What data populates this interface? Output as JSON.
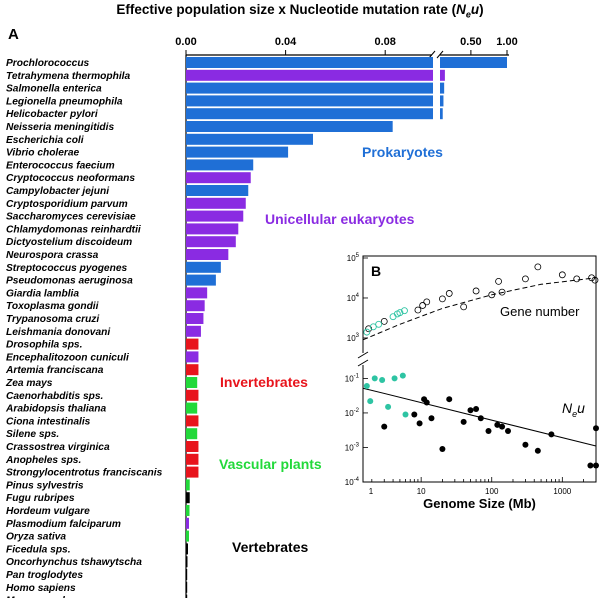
{
  "chart_data": [
    {
      "panel": "A",
      "type": "bar",
      "orientation": "horizontal",
      "title": "Effective population size x Nucleotide mutation rate (",
      "title_symbol": "N",
      "title_subscript": "e",
      "title_symbol2": "u",
      "title_close": ")",
      "x_ticks_left": [
        "0.00",
        "0.04",
        "0.08"
      ],
      "x_ticks_right": [
        "0.50",
        "1.00"
      ],
      "colors": {
        "Prokaryotes": "#1f6fd6",
        "Unicellular eukaryotes": "#8a2be2",
        "Invertebrates": "#e8141c",
        "Vascular plants": "#22d93a",
        "Vertebrates": "#000000"
      },
      "group_labels": [
        {
          "text": "Prokaryotes",
          "color": "#1f6fd6"
        },
        {
          "text": "Unicellular eukaryotes",
          "color": "#8a2be2"
        },
        {
          "text": "Invertebrates",
          "color": "#e8141c"
        },
        {
          "text": "Vascular plants",
          "color": "#22d93a"
        },
        {
          "text": "Vertebrates",
          "color": "#000000"
        }
      ],
      "categories": [
        "Prochlorococcus",
        "Tetrahymena thermophila",
        "Salmonella enterica",
        "Legionella pneumophila",
        "Helicobacter pylori",
        "Neisseria meningitidis",
        "Escherichia coli",
        "Vibrio cholerae",
        "Enterococcus faecium",
        "Cryptococcus neoformans",
        "Campylobacter jejuni",
        "Cryptosporidium parvum",
        "Saccharomyces cerevisiae",
        "Chlamydomonas reinhardtii",
        "Dictyostelium discoideum",
        "Neurospora crassa",
        "Streptococcus pyogenes",
        "Pseudomonas aeruginosa",
        "Giardia lamblia",
        "Toxoplasma gondii",
        "Trypanosoma cruzi",
        "Leishmania donovani",
        "Drosophila sps.",
        "Encephalitozoon cuniculi",
        "Artemia franciscana",
        "Zea mays",
        "Caenorhabditis sps.",
        "Arabidopsis thaliana",
        "Ciona intestinalis",
        "Silene sps.",
        "Crassostrea virginica",
        "Anopheles sps.",
        "Strongylocentrotus franciscanis",
        "Pinus sylvestris",
        "Fugu rubripes",
        "Hordeum vulgare",
        "Plasmodium falciparum",
        "Oryza sativa",
        "Ficedula sps.",
        "Oncorhynchus tshawytscha",
        "Pan troglodytes",
        "Homo sapiens",
        "Mus musculus"
      ],
      "groups": [
        "Prokaryotes",
        "Unicellular eukaryotes",
        "Prokaryotes",
        "Prokaryotes",
        "Prokaryotes",
        "Prokaryotes",
        "Prokaryotes",
        "Prokaryotes",
        "Prokaryotes",
        "Unicellular eukaryotes",
        "Prokaryotes",
        "Unicellular eukaryotes",
        "Unicellular eukaryotes",
        "Unicellular eukaryotes",
        "Unicellular eukaryotes",
        "Unicellular eukaryotes",
        "Prokaryotes",
        "Prokaryotes",
        "Unicellular eukaryotes",
        "Unicellular eukaryotes",
        "Unicellular eukaryotes",
        "Unicellular eukaryotes",
        "Invertebrates",
        "Unicellular eukaryotes",
        "Invertebrates",
        "Vascular plants",
        "Invertebrates",
        "Vascular plants",
        "Invertebrates",
        "Vascular plants",
        "Invertebrates",
        "Invertebrates",
        "Invertebrates",
        "Vascular plants",
        "Vertebrates",
        "Vascular plants",
        "Unicellular eukaryotes",
        "Vascular plants",
        "Vertebrates",
        "Vertebrates",
        "Vertebrates",
        "Vertebrates",
        "Vertebrates"
      ],
      "values": [
        1.0,
        0.14,
        0.13,
        0.12,
        0.11,
        0.083,
        0.051,
        0.041,
        0.027,
        0.026,
        0.025,
        0.024,
        0.023,
        0.021,
        0.02,
        0.017,
        0.014,
        0.012,
        0.0085,
        0.0075,
        0.007,
        0.006,
        0.005,
        0.005,
        0.005,
        0.0045,
        0.005,
        0.0045,
        0.005,
        0.0045,
        0.005,
        0.005,
        0.005,
        0.0015,
        0.0015,
        0.0014,
        0.0012,
        0.0012,
        0.0008,
        0.0006,
        0.0004,
        0.0003,
        0.0002
      ]
    },
    {
      "panel": "B",
      "type": "scatter",
      "xlabel": "Genome Size (Mb)",
      "xscale": "log",
      "xlim": [
        1.5,
        3000
      ],
      "x_ticks": [
        "1",
        "10",
        "100",
        "1000"
      ],
      "upper": {
        "label": "Gene number",
        "yscale": "log",
        "ylim": [
          500,
          100000
        ],
        "y_ticks": [
          "10",
          "10",
          "10"
        ],
        "y_tick_exponents": [
          "3",
          "4",
          "5"
        ],
        "fit_line": {
          "style": "dashed",
          "points": [
            [
              1.5,
              900
            ],
            [
              5,
              2200
            ],
            [
              20,
              5500
            ],
            [
              100,
              12000
            ],
            [
              500,
              22000
            ],
            [
              3000,
              32000
            ]
          ]
        },
        "points_unicellular": {
          "color": "#2ec4a3",
          "points": [
            [
              1.7,
              1400
            ],
            [
              2.1,
              1900
            ],
            [
              2.5,
              2200
            ],
            [
              4.0,
              3400
            ],
            [
              4.6,
              4000
            ],
            [
              5.0,
              4300
            ],
            [
              5.8,
              4800
            ]
          ]
        },
        "points_other": {
          "color": "#000000",
          "points": [
            [
              1.8,
              1700
            ],
            [
              3.0,
              2600
            ],
            [
              9,
              5000
            ],
            [
              10.5,
              6500
            ],
            [
              12,
              8000
            ],
            [
              20,
              9500
            ],
            [
              25,
              13000
            ],
            [
              40,
              6000
            ],
            [
              60,
              15000
            ],
            [
              100,
              12000
            ],
            [
              125,
              26000
            ],
            [
              140,
              14000
            ],
            [
              300,
              30000
            ],
            [
              450,
              60000
            ],
            [
              1000,
              38000
            ],
            [
              1600,
              30000
            ],
            [
              2600,
              32000
            ],
            [
              2900,
              28000
            ]
          ]
        }
      },
      "lower": {
        "label_symbol": "N",
        "label_subscript": "e",
        "label_symbol2": "u",
        "yscale": "log",
        "ylim": [
          0.0001,
          0.2
        ],
        "y_ticks": [
          "10",
          "10",
          "10",
          "10"
        ],
        "y_tick_exponents": [
          "-1",
          "-2",
          "-3",
          "-4"
        ],
        "fit_line": {
          "style": "solid",
          "points": [
            [
              1.5,
              0.052
            ],
            [
              3000,
              0.0011
            ]
          ]
        },
        "points_unicellular": {
          "color": "#2ec4a3",
          "points": [
            [
              1.7,
              0.06
            ],
            [
              1.9,
              0.022
            ],
            [
              2.2,
              0.1
            ],
            [
              2.8,
              0.09
            ],
            [
              3.4,
              0.015
            ],
            [
              4.2,
              0.1
            ],
            [
              5.5,
              0.12
            ],
            [
              6.0,
              0.009
            ]
          ]
        },
        "points_other": {
          "color": "#000000",
          "points": [
            [
              3.0,
              0.004
            ],
            [
              8,
              0.009
            ],
            [
              9.5,
              0.005
            ],
            [
              11,
              0.025
            ],
            [
              12,
              0.02
            ],
            [
              14,
              0.007
            ],
            [
              20,
              0.0009
            ],
            [
              25,
              0.025
            ],
            [
              40,
              0.0055
            ],
            [
              50,
              0.012
            ],
            [
              60,
              0.013
            ],
            [
              70,
              0.007
            ],
            [
              90,
              0.003
            ],
            [
              120,
              0.0045
            ],
            [
              140,
              0.004
            ],
            [
              170,
              0.003
            ],
            [
              300,
              0.0012
            ],
            [
              450,
              0.0008
            ],
            [
              700,
              0.0024
            ],
            [
              2500,
              0.0003
            ],
            [
              3000,
              0.0003
            ],
            [
              3000,
              0.0036
            ]
          ]
        }
      }
    }
  ],
  "panel_labels": {
    "a": "A",
    "b": "B"
  }
}
